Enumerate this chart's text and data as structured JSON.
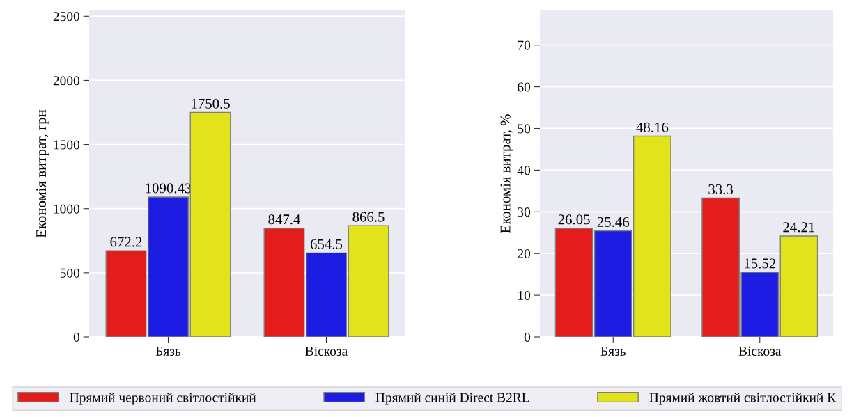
{
  "chart_data": [
    {
      "type": "bar",
      "categories": [
        "Бязь",
        "Віскоза"
      ],
      "ylabel": "Економія витрат, грн",
      "ylim": [
        0,
        2545
      ],
      "yticks": [
        0,
        500,
        1000,
        1500,
        2000,
        2500
      ],
      "grid": "y",
      "data_labels": true,
      "legend": "bottom",
      "series": [
        {
          "name": "Прямий червоний світлостійкий",
          "color": "#e31c1c",
          "values": [
            672.2,
            847.4
          ]
        },
        {
          "name": "Прямий синій Direct B2RL",
          "color": "#1c1ce3",
          "values": [
            1090.43,
            654.5
          ]
        },
        {
          "name": "Прямий жовтий світлостійкий К",
          "color": "#e3e31c",
          "values": [
            1750.5,
            866.5
          ]
        }
      ]
    },
    {
      "type": "bar",
      "categories": [
        "Бязь",
        "Віскоза"
      ],
      "ylabel": "Економія витрат, %",
      "ylim": [
        0,
        78.3
      ],
      "yticks": [
        0,
        10,
        20,
        30,
        40,
        50,
        60,
        70
      ],
      "grid": "y",
      "data_labels": true,
      "series": [
        {
          "color": "#e31c1c",
          "values": [
            26.05,
            33.3
          ]
        },
        {
          "color": "#1c1ce3",
          "values": [
            25.46,
            15.52
          ]
        },
        {
          "color": "#e3e31c",
          "values": [
            48.16,
            24.21
          ]
        }
      ]
    }
  ]
}
